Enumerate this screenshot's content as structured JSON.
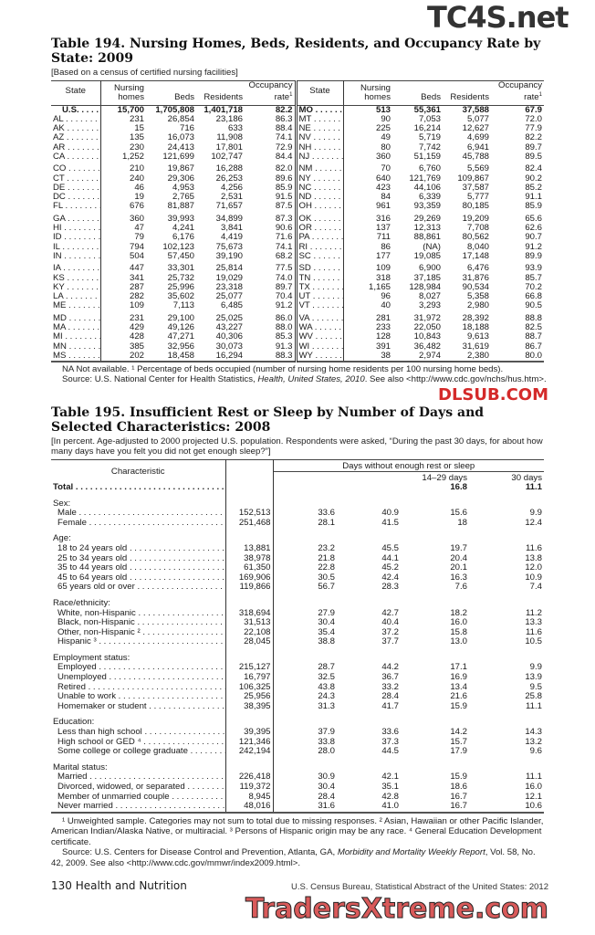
{
  "watermarks": {
    "top": "TC4S.net",
    "middle": "DLSUB.COM",
    "bottom": "TradersXtreme.com"
  },
  "table194": {
    "title": "Table 194. Nursing Homes, Beds, Residents, and Occupancy Rate by State: 2009",
    "subtitle": "[Based on a census of certified nursing facilities]",
    "headers": {
      "state": "State",
      "homes": "Nursing homes",
      "beds": "Beds",
      "residents": "Residents",
      "occupancy": "Occupancy rate",
      "occupancy_note": "1"
    },
    "left_groups": [
      [
        [
          "U.S.",
          "15,700",
          "1,705,808",
          "1,401,718",
          "82.2"
        ],
        [
          "AL",
          "231",
          "26,854",
          "23,186",
          "86.3"
        ],
        [
          "AK",
          "15",
          "716",
          "633",
          "88.4"
        ],
        [
          "AZ",
          "135",
          "16,073",
          "11,908",
          "74.1"
        ],
        [
          "AR",
          "230",
          "24,413",
          "17,801",
          "72.9"
        ],
        [
          "CA",
          "1,252",
          "121,699",
          "102,747",
          "84.4"
        ]
      ],
      [
        [
          "CO",
          "210",
          "19,867",
          "16,288",
          "82.0"
        ],
        [
          "CT",
          "240",
          "29,306",
          "26,253",
          "89.6"
        ],
        [
          "DE",
          "46",
          "4,953",
          "4,256",
          "85.9"
        ],
        [
          "DC",
          "19",
          "2,765",
          "2,531",
          "91.5"
        ],
        [
          "FL",
          "676",
          "81,887",
          "71,657",
          "87.5"
        ]
      ],
      [
        [
          "GA",
          "360",
          "39,993",
          "34,899",
          "87.3"
        ],
        [
          "HI",
          "47",
          "4,241",
          "3,841",
          "90.6"
        ],
        [
          "ID",
          "79",
          "6,176",
          "4,419",
          "71.6"
        ],
        [
          "IL",
          "794",
          "102,123",
          "75,673",
          "74.1"
        ],
        [
          "IN",
          "504",
          "57,450",
          "39,190",
          "68.2"
        ]
      ],
      [
        [
          "IA",
          "447",
          "33,301",
          "25,814",
          "77.5"
        ],
        [
          "KS",
          "341",
          "25,732",
          "19,029",
          "74.0"
        ],
        [
          "KY",
          "287",
          "25,996",
          "23,318",
          "89.7"
        ],
        [
          "LA",
          "282",
          "35,602",
          "25,077",
          "70.4"
        ],
        [
          "ME",
          "109",
          "7,113",
          "6,485",
          "91.2"
        ]
      ],
      [
        [
          "MD",
          "231",
          "29,100",
          "25,025",
          "86.0"
        ],
        [
          "MA",
          "429",
          "49,126",
          "43,227",
          "88.0"
        ],
        [
          "MI",
          "428",
          "47,271",
          "40,306",
          "85.3"
        ],
        [
          "MN",
          "385",
          "32,956",
          "30,073",
          "91.3"
        ],
        [
          "MS",
          "202",
          "18,458",
          "16,294",
          "88.3"
        ]
      ]
    ],
    "right_groups": [
      [
        [
          "MO",
          "513",
          "55,361",
          "37,588",
          "67.9"
        ],
        [
          "MT",
          "90",
          "7,053",
          "5,077",
          "72.0"
        ],
        [
          "NE",
          "225",
          "16,214",
          "12,627",
          "77.9"
        ],
        [
          "NV",
          "49",
          "5,719",
          "4,699",
          "82.2"
        ],
        [
          "NH",
          "80",
          "7,742",
          "6,941",
          "89.7"
        ],
        [
          "NJ",
          "360",
          "51,159",
          "45,788",
          "89.5"
        ]
      ],
      [
        [
          "NM",
          "70",
          "6,760",
          "5,569",
          "82.4"
        ],
        [
          "NY",
          "640",
          "121,769",
          "109,867",
          "90.2"
        ],
        [
          "NC",
          "423",
          "44,106",
          "37,587",
          "85.2"
        ],
        [
          "ND",
          "84",
          "6,339",
          "5,777",
          "91.1"
        ],
        [
          "OH",
          "961",
          "93,359",
          "80,185",
          "85.9"
        ]
      ],
      [
        [
          "OK",
          "316",
          "29,269",
          "19,209",
          "65.6"
        ],
        [
          "OR",
          "137",
          "12,313",
          "7,708",
          "62.6"
        ],
        [
          "PA",
          "711",
          "88,861",
          "80,562",
          "90.7"
        ],
        [
          "RI",
          "86",
          "(NA)",
          "8,040",
          "91.2"
        ],
        [
          "SC",
          "177",
          "19,085",
          "17,148",
          "89.9"
        ]
      ],
      [
        [
          "SD",
          "109",
          "6,900",
          "6,476",
          "93.9"
        ],
        [
          "TN",
          "318",
          "37,185",
          "31,876",
          "85.7"
        ],
        [
          "TX",
          "1,165",
          "128,984",
          "90,534",
          "70.2"
        ],
        [
          "UT",
          "96",
          "8,027",
          "5,358",
          "66.8"
        ],
        [
          "VT",
          "40",
          "3,293",
          "2,980",
          "90.5"
        ]
      ],
      [
        [
          "VA",
          "281",
          "31,972",
          "28,392",
          "88.8"
        ],
        [
          "WA",
          "233",
          "22,050",
          "18,188",
          "82.5"
        ],
        [
          "WV",
          "128",
          "10,843",
          "9,613",
          "88.7"
        ],
        [
          "WI",
          "391",
          "36,482",
          "31,619",
          "86.7"
        ],
        [
          "WY",
          "38",
          "2,974",
          "2,380",
          "80.0"
        ]
      ]
    ],
    "note": "NA Not available. ¹ Percentage of beds occupied (number of nursing home residents per 100 nursing home beds).",
    "source_prefix": "Source: U.S. National Center for Health Statistics, ",
    "source_italic": "Health, United States, 2010",
    "source_suffix": ". See also <http://www.cdc.gov/nchs/hus.htm>."
  },
  "table195": {
    "title": "Table 195. Insufficient Rest or Sleep by Number of Days and Selected Characteristics: 2008",
    "subtitle": "[In percent. Age-adjusted to 2000 projected U.S. population. Respondents were asked, “During the past 30 days, for about how many days have you felt you did not get enough sleep?”]",
    "headers": {
      "characteristic": "Characteristic",
      "group": "Days without enough rest or sleep",
      "col3": "14–29 days",
      "col4": "30 days"
    },
    "total": [
      "Total",
      "",
      "",
      "",
      "16.8",
      "11.1"
    ],
    "sections": [
      {
        "heading": "Sex:",
        "rows": [
          [
            "Male",
            "152,513",
            "33.6",
            "40.9",
            "15.6",
            "9.9"
          ],
          [
            "Female",
            "251,468",
            "28.1",
            "41.5",
            "18",
            "12.4"
          ]
        ]
      },
      {
        "heading": "Age:",
        "rows": [
          [
            "18 to 24 years old",
            "13,881",
            "23.2",
            "45.5",
            "19.7",
            "11.6"
          ],
          [
            "25 to 34 years old",
            "38,978",
            "21.8",
            "44.1",
            "20.4",
            "13.8"
          ],
          [
            "35 to 44 years old",
            "61,350",
            "22.8",
            "45.2",
            "20.1",
            "12.0"
          ],
          [
            "45 to 64 years old",
            "169,906",
            "30.5",
            "42.4",
            "16.3",
            "10.9"
          ],
          [
            "65 years old or over",
            "119,866",
            "56.7",
            "28.3",
            "7.6",
            "7.4"
          ]
        ]
      },
      {
        "heading": "Race/ethnicity:",
        "rows": [
          [
            "White, non-Hispanic",
            "318,694",
            "27.9",
            "42.7",
            "18.2",
            "11.2"
          ],
          [
            "Black, non-Hispanic",
            "31,513",
            "30.4",
            "40.4",
            "16.0",
            "13.3"
          ],
          [
            "Other, non-Hispanic ²",
            "22,108",
            "35.4",
            "37.2",
            "15.8",
            "11.6"
          ],
          [
            "Hispanic ³",
            "28,045",
            "38.8",
            "37.7",
            "13.0",
            "10.5"
          ]
        ]
      },
      {
        "heading": "Employment status:",
        "rows": [
          [
            "Employed",
            "215,127",
            "28.7",
            "44.2",
            "17.1",
            "9.9"
          ],
          [
            "Unemployed",
            "16,797",
            "32.5",
            "36.7",
            "16.9",
            "13.9"
          ],
          [
            "Retired",
            "106,325",
            "43.8",
            "33.2",
            "13.4",
            "9.5"
          ],
          [
            "Unable to work",
            "25,956",
            "24.3",
            "28.4",
            "21.6",
            "25.8"
          ],
          [
            "Homemaker or student",
            "38,395",
            "31.3",
            "41.7",
            "15.9",
            "11.1"
          ]
        ]
      },
      {
        "heading": "Education:",
        "rows": [
          [
            "Less than high school",
            "39,395",
            "37.9",
            "33.6",
            "14.2",
            "14.3"
          ],
          [
            "High school or GED ⁴",
            "121,346",
            "33.8",
            "37.3",
            "15.7",
            "13.2"
          ],
          [
            "Some college or college graduate",
            "242,194",
            "28.0",
            "44.5",
            "17.9",
            "9.6"
          ]
        ]
      },
      {
        "heading": "Marital status:",
        "rows": [
          [
            "Married",
            "226,418",
            "30.9",
            "42.1",
            "15.9",
            "11.1"
          ],
          [
            "Divorced, widowed, or separated",
            "119,372",
            "30.4",
            "35.1",
            "18.6",
            "16.0"
          ],
          [
            "Member of unmarried couple",
            "8,945",
            "28.4",
            "42.8",
            "16.7",
            "12.1"
          ],
          [
            "Never married",
            "48,016",
            "31.6",
            "41.0",
            "16.7",
            "10.6"
          ]
        ]
      }
    ],
    "note": "¹ Unweighted sample. Categories may not sum to total due to missing responses. ² Asian, Hawaiian or other Pacific Islander, American Indian/Alaska Native, or multiracial. ³ Persons of Hispanic origin may be any race. ⁴ General Education Development certificate.",
    "source_prefix": "Source: U.S. Centers for Disease Control and Prevention, Atlanta, GA, ",
    "source_italic": "Morbidity and Mortality Weekly Report",
    "source_suffix": ", Vol. 58, No. 42, 2009. See also <http://www.cdc.gov/mmwr/index2009.html>."
  },
  "footer": {
    "page": "130  Health and Nutrition",
    "publication": "U.S. Census Bureau, Statistical Abstract of the United States: 2012"
  }
}
